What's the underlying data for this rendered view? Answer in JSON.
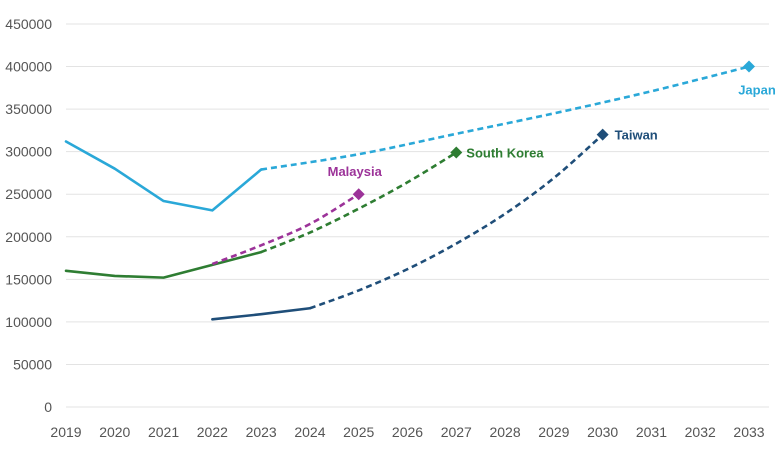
{
  "chart_data": {
    "type": "line",
    "title": "",
    "xlabel": "",
    "ylabel": "",
    "ylim": [
      0,
      450000
    ],
    "xlim": [
      2019,
      2033
    ],
    "y_ticks": [
      0,
      50000,
      100000,
      150000,
      200000,
      250000,
      300000,
      350000,
      400000,
      450000
    ],
    "y_tick_labels": [
      "0",
      "50000",
      "100000",
      "150000",
      "200000",
      "250000",
      "300000",
      "350000",
      "400000",
      "450000"
    ],
    "x_ticks": [
      2019,
      2020,
      2021,
      2022,
      2023,
      2024,
      2025,
      2026,
      2027,
      2028,
      2029,
      2030,
      2031,
      2032,
      2033
    ],
    "x_tick_labels": [
      "2019",
      "2020",
      "2021",
      "2022",
      "2023",
      "2024",
      "2025",
      "2026",
      "2027",
      "2028",
      "2029",
      "2030",
      "2031",
      "2032",
      "2033"
    ],
    "grid": "horizontal",
    "legend": "none",
    "series": [
      {
        "name": "Japan",
        "color": "#2aa8d8",
        "actual": [
          [
            2019,
            312000
          ],
          [
            2020,
            280000
          ],
          [
            2021,
            242000
          ],
          [
            2022,
            231000
          ],
          [
            2023,
            279000
          ]
        ],
        "projected": [
          [
            2023,
            279000
          ],
          [
            2025,
            297000
          ],
          [
            2027,
            321000
          ],
          [
            2029,
            345000
          ],
          [
            2031,
            371000
          ],
          [
            2033,
            400000
          ]
        ],
        "end_marker": [
          2033,
          400000
        ]
      },
      {
        "name": "South Korea",
        "color": "#2e7d32",
        "actual": [
          [
            2019,
            160000
          ],
          [
            2020,
            154000
          ],
          [
            2021,
            152000
          ],
          [
            2022,
            167000
          ],
          [
            2023,
            182000
          ]
        ],
        "projected": [
          [
            2023,
            182000
          ],
          [
            2024,
            205000
          ],
          [
            2025,
            233000
          ],
          [
            2026,
            264000
          ],
          [
            2027,
            299000
          ]
        ],
        "end_marker": [
          2027,
          299000
        ]
      },
      {
        "name": "Malaysia",
        "color": "#9c3399",
        "actual": [],
        "projected": [
          [
            2022,
            168000
          ],
          [
            2023,
            190000
          ],
          [
            2024,
            215000
          ],
          [
            2025,
            250000
          ]
        ],
        "end_marker": [
          2025,
          250000
        ]
      },
      {
        "name": "Taiwan",
        "color": "#1f4e79",
        "actual": [
          [
            2022,
            103000
          ],
          [
            2023,
            109000
          ],
          [
            2024,
            116000
          ]
        ],
        "projected": [
          [
            2024,
            116000
          ],
          [
            2025,
            137000
          ],
          [
            2026,
            162000
          ],
          [
            2027,
            192000
          ],
          [
            2028,
            227000
          ],
          [
            2029,
            269000
          ],
          [
            2030,
            320000
          ]
        ],
        "end_marker": [
          2030,
          320000
        ]
      }
    ],
    "colors": {
      "grid": "#e3e3e3",
      "tick_text": "#555555"
    }
  }
}
